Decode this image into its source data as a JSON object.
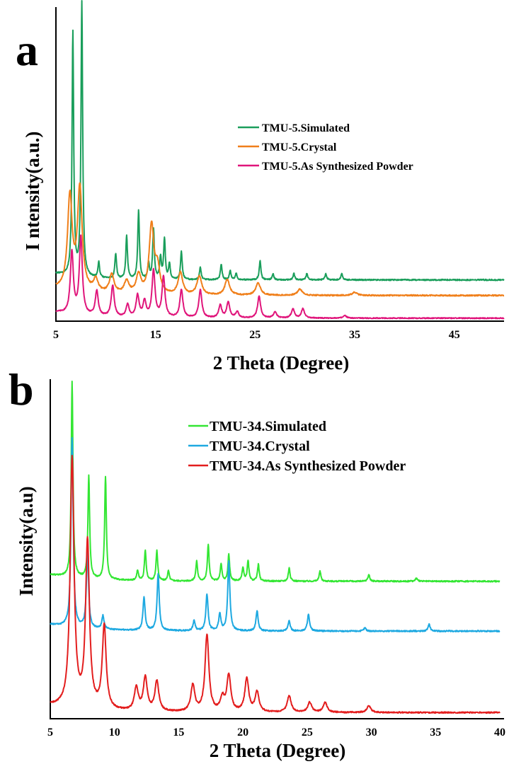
{
  "chart_data": [
    {
      "panel_label": "a",
      "type": "line",
      "xlabel": "2 Theta (Degree)",
      "ylabel": "I ntensity(a.u.)",
      "xlim": [
        5,
        50
      ],
      "xticks": [
        5,
        15,
        25,
        35,
        45
      ],
      "y_units": "arbitrary",
      "grid": false,
      "legend_position": "upper-right",
      "series": [
        {
          "name": "TMU-5.Simulated",
          "color": "#1a9e5b",
          "baseline": 0.128,
          "noise": 0.004,
          "peaks": [
            [
              6.7,
              0.78
            ],
            [
              7.6,
              0.88
            ],
            [
              9.3,
              0.05
            ],
            [
              11.0,
              0.08
            ],
            [
              12.1,
              0.14
            ],
            [
              13.3,
              0.22
            ],
            [
              14.3,
              0.05
            ],
            [
              14.8,
              0.16
            ],
            [
              15.5,
              0.07
            ],
            [
              15.9,
              0.13
            ],
            [
              16.4,
              0.05
            ],
            [
              17.6,
              0.09
            ],
            [
              19.5,
              0.04
            ],
            [
              21.6,
              0.05
            ],
            [
              22.5,
              0.03
            ],
            [
              23.1,
              0.02
            ],
            [
              25.5,
              0.06
            ],
            [
              26.8,
              0.02
            ],
            [
              28.9,
              0.02
            ],
            [
              30.2,
              0.02
            ],
            [
              32.1,
              0.02
            ],
            [
              33.7,
              0.02
            ]
          ],
          "width": 0.1
        },
        {
          "name": "TMU-5.Crystal",
          "color": "#f07f1a",
          "baseline": 0.078,
          "noise": 0.004,
          "peaks": [
            [
              6.4,
              0.3
            ],
            [
              7.4,
              0.33
            ],
            [
              9.0,
              0.04
            ],
            [
              10.6,
              0.06
            ],
            [
              12.1,
              0.04
            ],
            [
              13.3,
              0.06
            ],
            [
              14.6,
              0.22
            ],
            [
              15.2,
              0.08
            ],
            [
              17.5,
              0.07
            ],
            [
              19.4,
              0.06
            ],
            [
              22.2,
              0.05
            ],
            [
              25.3,
              0.04
            ],
            [
              29.5,
              0.02
            ],
            [
              35.0,
              0.01
            ]
          ],
          "width": 0.28
        },
        {
          "name": "TMU-5.As Synthesized Powder",
          "color": "#e0157b",
          "baseline": 0.005,
          "noise": 0.003,
          "peaks": [
            [
              6.6,
              0.2
            ],
            [
              7.5,
              0.25
            ],
            [
              9.1,
              0.08
            ],
            [
              10.7,
              0.1
            ],
            [
              12.2,
              0.04
            ],
            [
              13.2,
              0.07
            ],
            [
              13.9,
              0.05
            ],
            [
              14.8,
              0.15
            ],
            [
              15.8,
              0.13
            ],
            [
              17.6,
              0.09
            ],
            [
              19.5,
              0.09
            ],
            [
              21.5,
              0.04
            ],
            [
              22.3,
              0.05
            ],
            [
              23.2,
              0.02
            ],
            [
              25.4,
              0.07
            ],
            [
              27.0,
              0.02
            ],
            [
              28.8,
              0.03
            ],
            [
              29.8,
              0.03
            ],
            [
              34.0,
              0.01
            ]
          ],
          "width": 0.18
        }
      ]
    },
    {
      "panel_label": "b",
      "type": "line",
      "xlabel": "2 Theta (Degree)",
      "ylabel": "Intensity(a.u)",
      "xlim": [
        5,
        40
      ],
      "xticks": [
        5,
        10,
        15,
        20,
        25,
        30,
        35,
        40
      ],
      "y_units": "arbitrary",
      "grid": false,
      "legend_position": "upper-right",
      "series": [
        {
          "name": "TMU-34.Simulated",
          "color": "#33e633",
          "baseline": 0.405,
          "noise": 0.004,
          "peaks": [
            [
              6.7,
              0.59
            ],
            [
              8.0,
              0.31
            ],
            [
              9.3,
              0.31
            ],
            [
              11.8,
              0.03
            ],
            [
              12.4,
              0.09
            ],
            [
              13.3,
              0.09
            ],
            [
              14.2,
              0.03
            ],
            [
              16.4,
              0.06
            ],
            [
              17.3,
              0.11
            ],
            [
              18.3,
              0.05
            ],
            [
              18.9,
              0.08
            ],
            [
              20.0,
              0.04
            ],
            [
              20.4,
              0.06
            ],
            [
              21.2,
              0.05
            ],
            [
              23.6,
              0.04
            ],
            [
              26.0,
              0.03
            ],
            [
              29.8,
              0.02
            ],
            [
              33.5,
              0.01
            ]
          ],
          "width": 0.08
        },
        {
          "name": "TMU-34.Crystal",
          "color": "#1ea9e1",
          "baseline": 0.255,
          "noise": 0.004,
          "peaks": [
            [
              6.7,
              0.57
            ],
            [
              7.9,
              0.23
            ],
            [
              9.1,
              0.04
            ],
            [
              12.3,
              0.1
            ],
            [
              13.4,
              0.17
            ],
            [
              16.2,
              0.03
            ],
            [
              17.2,
              0.11
            ],
            [
              18.2,
              0.05
            ],
            [
              18.9,
              0.21
            ],
            [
              21.1,
              0.06
            ],
            [
              23.6,
              0.03
            ],
            [
              25.1,
              0.05
            ],
            [
              29.5,
              0.01
            ],
            [
              34.5,
              0.02
            ]
          ],
          "width": 0.1
        },
        {
          "name": "TMU-34.As Synthesized Powder",
          "color": "#e31e1e",
          "baseline": 0.01,
          "noise": 0.004,
          "peaks": [
            [
              6.7,
              0.75
            ],
            [
              7.9,
              0.5
            ],
            [
              9.2,
              0.25
            ],
            [
              11.7,
              0.07
            ],
            [
              12.4,
              0.1
            ],
            [
              13.3,
              0.09
            ],
            [
              16.1,
              0.08
            ],
            [
              17.2,
              0.23
            ],
            [
              18.4,
              0.04
            ],
            [
              18.9,
              0.11
            ],
            [
              20.3,
              0.1
            ],
            [
              21.1,
              0.06
            ],
            [
              23.6,
              0.05
            ],
            [
              25.2,
              0.03
            ],
            [
              26.4,
              0.03
            ],
            [
              29.8,
              0.02
            ]
          ],
          "width": 0.18
        }
      ]
    }
  ]
}
